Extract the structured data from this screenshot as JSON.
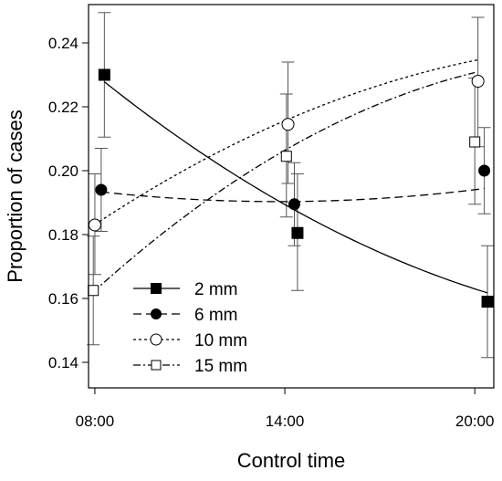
{
  "chart_data": {
    "type": "scatter",
    "title": "",
    "xlabel": "Control time",
    "ylabel": "Proportion of cases",
    "x_ticks": [
      "08:00",
      "14:00",
      "20:00"
    ],
    "x_tick_hours": [
      8,
      14,
      20
    ],
    "xlim_hours": [
      7.8,
      20.6
    ],
    "y_ticks": [
      0.14,
      0.16,
      0.18,
      0.2,
      0.22,
      0.24
    ],
    "y_tick_labels": [
      "0.14",
      "0.16",
      "0.18",
      "0.20",
      "0.22",
      "0.24"
    ],
    "ylim": [
      0.132,
      0.252
    ],
    "grid": false,
    "legend_position": "bottom-left",
    "series": [
      {
        "name": "2 mm",
        "marker": "filled-square",
        "line_style": "solid",
        "x_hours": [
          8.3,
          14.4,
          20.4
        ],
        "y": [
          0.23,
          0.1805,
          0.159
        ],
        "err_low": [
          0.2105,
          0.1625,
          0.1415
        ],
        "err_high": [
          0.2495,
          0.199,
          0.1765
        ],
        "fit": [
          0.2302,
          -0.008,
          0.0002
        ]
      },
      {
        "name": "6 mm",
        "marker": "filled-circle",
        "line_style": "dashed",
        "x_hours": [
          8.2,
          14.3,
          20.3
        ],
        "y": [
          0.194,
          0.1895,
          0.2
        ],
        "err_low": [
          0.181,
          0.1765,
          0.1865
        ],
        "err_high": [
          0.207,
          0.2025,
          0.2135
        ],
        "fit": [
          0.19357,
          -0.00112,
          9.66e-05
        ]
      },
      {
        "name": "10 mm",
        "marker": "open-circle",
        "line_style": "dotted",
        "x_hours": [
          8.0,
          14.1,
          20.1
        ],
        "y": [
          0.183,
          0.2145,
          0.228
        ],
        "err_low": [
          0.1675,
          0.196,
          0.2075
        ],
        "err_high": [
          0.199,
          0.234,
          0.248
        ],
        "fit": [
          0.18313,
          0.006556,
          -0.0001896
        ]
      },
      {
        "name": "15 mm",
        "marker": "open-square",
        "line_style": "dashdot",
        "x_hours": [
          7.95,
          14.05,
          20.0
        ],
        "y": [
          0.1625,
          0.2045,
          0.209
        ],
        "err_low": [
          0.1455,
          0.1855,
          0.1895
        ],
        "err_high": [
          0.1795,
          0.224,
          0.229
        ],
        "fit": [
          0.16246,
          0.008953,
          -0.0002722
        ]
      }
    ]
  }
}
